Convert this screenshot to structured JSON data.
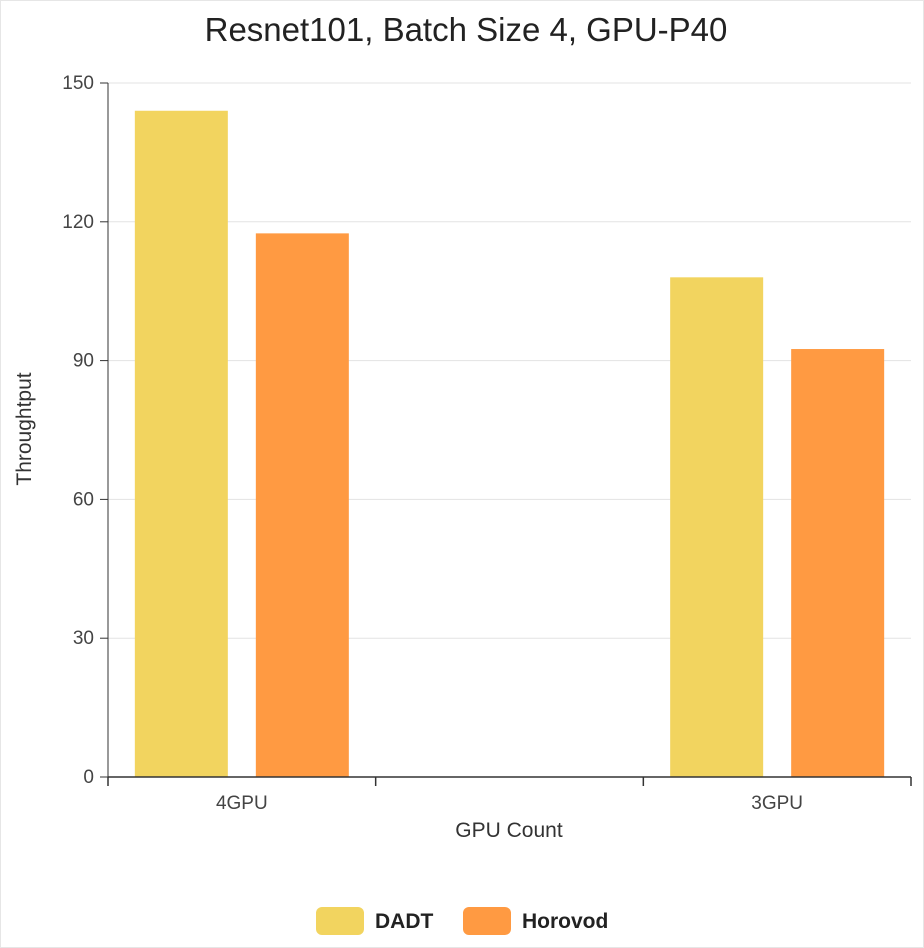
{
  "chart_data": {
    "type": "bar",
    "title": "Resnet101, Batch Size 4, GPU-P40",
    "xlabel": "GPU Count",
    "ylabel": "Throughtput",
    "categories": [
      "4GPU",
      "3GPU"
    ],
    "ylim": [
      0,
      150
    ],
    "yticks": [
      0,
      30,
      60,
      90,
      120,
      150
    ],
    "grid": true,
    "legend_position": "bottom",
    "series": [
      {
        "name": "DADT",
        "values": [
          144,
          108
        ],
        "color": "#F2D45F"
      },
      {
        "name": "Horovod",
        "values": [
          117.5,
          92.5
        ],
        "color": "#FF9A42"
      }
    ]
  }
}
